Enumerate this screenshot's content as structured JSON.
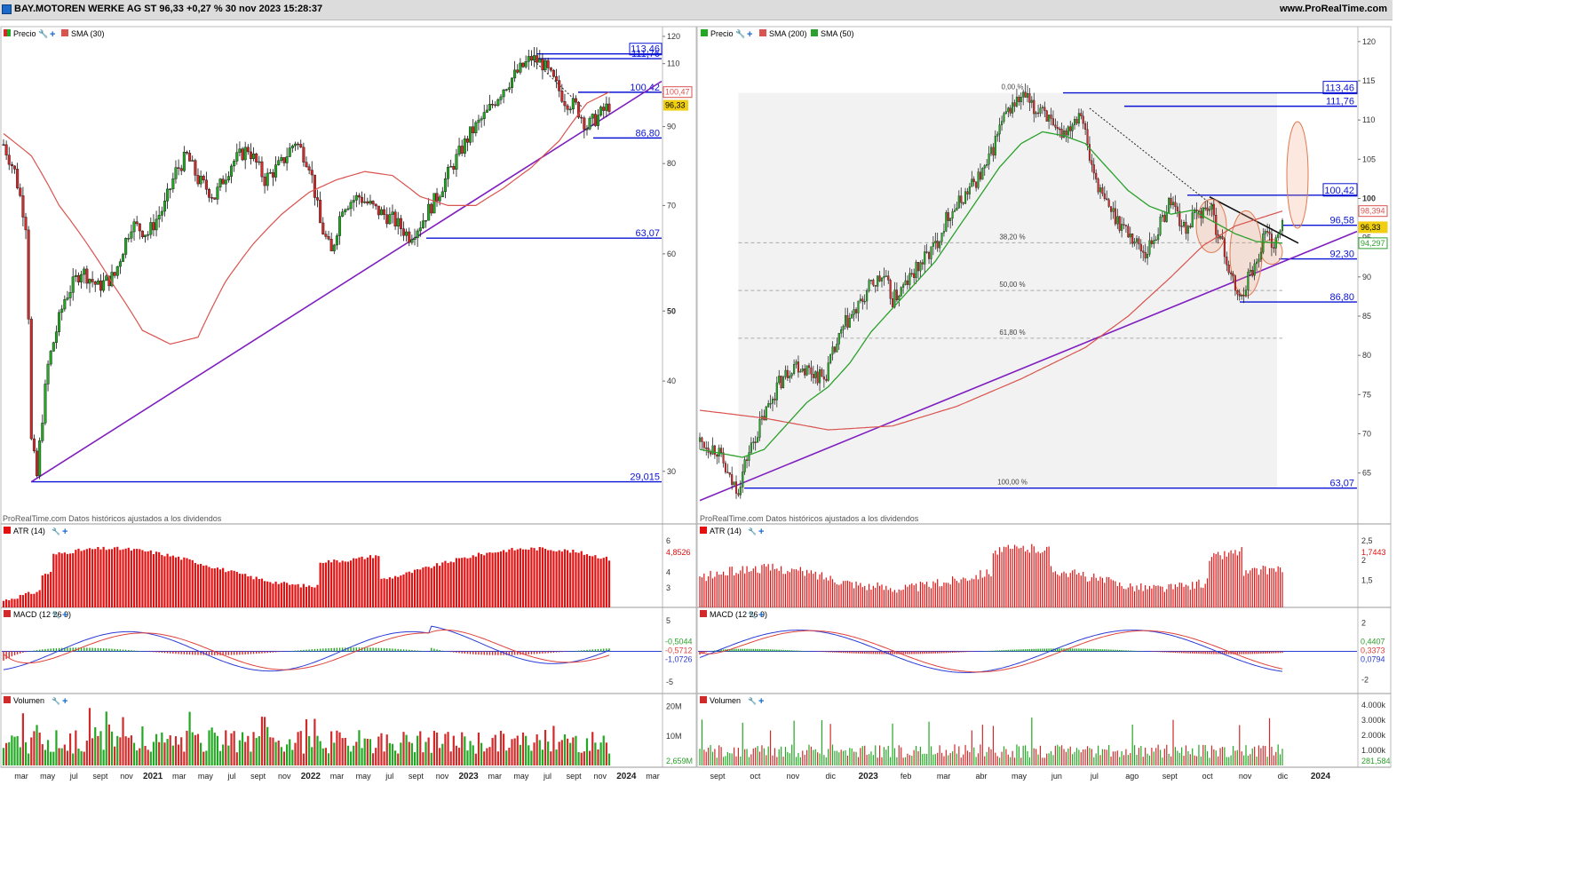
{
  "header": {
    "title": "BAY.MOTOREN WERKE AG ST 96,33 +0,27 % 30 nov 2023 15:28:37",
    "site": "www.ProRealTime.com"
  },
  "colors": {
    "up": "#22a822",
    "down": "#d12a2a",
    "sma_red": "#d9534f",
    "sma_green": "#2ca02c",
    "trend": "#7f1fbf",
    "level": "#0b14d4",
    "macd": "#2a3bd6",
    "signal": "#e0423a",
    "atr": "#e21010",
    "price_tag": "#f0cf12"
  },
  "footer_note": "ProRealTime.com Datos históricos ajustados a los dividendos",
  "left": {
    "legend": {
      "price": "Precio",
      "sma": "SMA (30)"
    },
    "y_ticks": [
      "120",
      "110",
      "100",
      "90",
      "80",
      "70",
      "60",
      "50",
      "40",
      "30"
    ],
    "levels": [
      {
        "label": "113,46",
        "value": 113.46
      },
      {
        "label": "111,76",
        "value": 111.76
      },
      {
        "label": "100,42",
        "value": 100.42
      },
      {
        "label": "86,80",
        "value": 86.8
      },
      {
        "label": "63,07",
        "value": 63.07
      },
      {
        "label": "29,015",
        "value": 29.015
      }
    ],
    "tags": {
      "sma": "100,47",
      "price": "96,33"
    },
    "atr": {
      "legend": "ATR (14)",
      "ticks": [
        "6",
        "4",
        "3"
      ],
      "value": "4,8526"
    },
    "macd": {
      "legend": "MACD (12 26 9)",
      "ticks": [
        "5",
        "-5"
      ],
      "values": [
        "-0,5044",
        "-0,5712",
        "-1,0726"
      ]
    },
    "volume": {
      "legend": "Volumen",
      "ticks": [
        "20M",
        "10M"
      ],
      "value": "2,659M"
    },
    "x_labels": [
      "mar",
      "may",
      "jul",
      "sept",
      "nov",
      "2021",
      "mar",
      "may",
      "jul",
      "sept",
      "nov",
      "2022",
      "mar",
      "may",
      "jul",
      "sept",
      "nov",
      "2023",
      "mar",
      "may",
      "jul",
      "sept",
      "nov",
      "2024",
      "mar"
    ]
  },
  "right": {
    "legend": {
      "price": "Precio",
      "sma200": "SMA (200)",
      "sma50": "SMA (50)"
    },
    "y_ticks": [
      "120",
      "115",
      "110",
      "105",
      "100",
      "95",
      "90",
      "85",
      "80",
      "75",
      "70",
      "65"
    ],
    "levels": [
      {
        "label": "113,46",
        "value": 113.46
      },
      {
        "label": "111,76",
        "value": 111.76
      },
      {
        "label": "100,42",
        "value": 100.42
      },
      {
        "label": "96,58",
        "value": 96.58
      },
      {
        "label": "92,30",
        "value": 92.3
      },
      {
        "label": "86,80",
        "value": 86.8
      },
      {
        "label": "63,07",
        "value": 63.07
      }
    ],
    "fib": [
      "0,00 %",
      "38,20 %",
      "50,00 %",
      "61,80 %",
      "100,00 %"
    ],
    "tags": {
      "sma200": "98,394",
      "price": "96,33",
      "sma50": "94,297"
    },
    "atr": {
      "legend": "ATR (14)",
      "ticks": [
        "2,5",
        "2",
        "1,5"
      ],
      "value": "1,7443"
    },
    "macd": {
      "legend": "MACD (12 26 9)",
      "ticks": [
        "2",
        "-2"
      ],
      "values": [
        "0,4407",
        "0,3373",
        "0,0794"
      ]
    },
    "volume": {
      "legend": "Volumen",
      "ticks": [
        "4.000k",
        "3.000k",
        "2.000k",
        "1.000k"
      ],
      "value": "281,584"
    },
    "x_labels": [
      "sept",
      "oct",
      "nov",
      "dic",
      "2023",
      "feb",
      "mar",
      "abr",
      "may",
      "jun",
      "jul",
      "ago",
      "sept",
      "oct",
      "nov",
      "dic",
      "2024"
    ]
  },
  "chart_data": [
    {
      "type": "candlestick",
      "title": "BAY.MOTOREN WERKE AG ST weekly",
      "scale": "log",
      "ylim": [
        27,
        121
      ],
      "x_start": "2020-02",
      "x_end": "2023-11",
      "close_path": [
        [
          0,
          85
        ],
        [
          4,
          78
        ],
        [
          8,
          66
        ],
        [
          10,
          33
        ],
        [
          12,
          29.5
        ],
        [
          16,
          42
        ],
        [
          22,
          52
        ],
        [
          28,
          57
        ],
        [
          34,
          54
        ],
        [
          40,
          56
        ],
        [
          46,
          66
        ],
        [
          52,
          64
        ],
        [
          58,
          70
        ],
        [
          62,
          78
        ],
        [
          66,
          82
        ],
        [
          70,
          76
        ],
        [
          76,
          72
        ],
        [
          82,
          80
        ],
        [
          88,
          84
        ],
        [
          94,
          76
        ],
        [
          100,
          80
        ],
        [
          105,
          86
        ],
        [
          110,
          80
        ],
        [
          114,
          66
        ],
        [
          118,
          60
        ],
        [
          122,
          70
        ],
        [
          128,
          72
        ],
        [
          134,
          69
        ],
        [
          140,
          67
        ],
        [
          146,
          63.5
        ],
        [
          150,
          66
        ],
        [
          156,
          72
        ],
        [
          162,
          80
        ],
        [
          168,
          88
        ],
        [
          174,
          94
        ],
        [
          180,
          102
        ],
        [
          186,
          108
        ],
        [
          190,
          112
        ],
        [
          194,
          110
        ],
        [
          198,
          104
        ],
        [
          202,
          98
        ],
        [
          206,
          96
        ],
        [
          210,
          90
        ],
        [
          214,
          93
        ],
        [
          218,
          96.33
        ]
      ],
      "sma30_path": [
        [
          0,
          88
        ],
        [
          10,
          82
        ],
        [
          20,
          70
        ],
        [
          30,
          62
        ],
        [
          40,
          54
        ],
        [
          50,
          47
        ],
        [
          60,
          45
        ],
        [
          70,
          46
        ],
        [
          80,
          55
        ],
        [
          90,
          62
        ],
        [
          100,
          68
        ],
        [
          110,
          73
        ],
        [
          120,
          76
        ],
        [
          130,
          78
        ],
        [
          140,
          77
        ],
        [
          150,
          72
        ],
        [
          160,
          70
        ],
        [
          170,
          70
        ],
        [
          180,
          74
        ],
        [
          190,
          79
        ],
        [
          200,
          86
        ],
        [
          210,
          97
        ],
        [
          218,
          100.47
        ]
      ],
      "trendline": [
        [
          10,
          29.015
        ],
        [
          218,
          100
        ]
      ],
      "atr_range": [
        2,
        6.5
      ],
      "macd_range": [
        -6,
        6
      ],
      "volume_max": 22
    },
    {
      "type": "candlestick",
      "title": "BAY.MOTOREN WERKE AG ST daily",
      "scale": "linear",
      "ylim": [
        61,
        121
      ],
      "x_start": "2022-09",
      "x_end": "2023-11",
      "close_path": [
        [
          0,
          69
        ],
        [
          8,
          68
        ],
        [
          14,
          64
        ],
        [
          18,
          63.07
        ],
        [
          22,
          67
        ],
        [
          28,
          71
        ],
        [
          36,
          76
        ],
        [
          44,
          79
        ],
        [
          52,
          78
        ],
        [
          58,
          77
        ],
        [
          62,
          80
        ],
        [
          68,
          84
        ],
        [
          74,
          86
        ],
        [
          80,
          89
        ],
        [
          86,
          90
        ],
        [
          90,
          87
        ],
        [
          96,
          89
        ],
        [
          104,
          92
        ],
        [
          110,
          94
        ],
        [
          116,
          98
        ],
        [
          120,
          99
        ],
        [
          128,
          102
        ],
        [
          134,
          104
        ],
        [
          140,
          109
        ],
        [
          146,
          112
        ],
        [
          152,
          113
        ],
        [
          156,
          111
        ],
        [
          160,
          112
        ],
        [
          166,
          108
        ],
        [
          172,
          109
        ],
        [
          178,
          111.5
        ],
        [
          182,
          105
        ],
        [
          188,
          100
        ],
        [
          196,
          97
        ],
        [
          202,
          95
        ],
        [
          208,
          93
        ],
        [
          214,
          96
        ],
        [
          220,
          100
        ],
        [
          226,
          96
        ],
        [
          232,
          98
        ],
        [
          238,
          99
        ],
        [
          244,
          94
        ],
        [
          248,
          90
        ],
        [
          252,
          87
        ],
        [
          256,
          90
        ],
        [
          260,
          92
        ],
        [
          264,
          96
        ],
        [
          268,
          94
        ],
        [
          272,
          96.33
        ]
      ],
      "sma50_path": [
        [
          0,
          68
        ],
        [
          20,
          67
        ],
        [
          30,
          68
        ],
        [
          40,
          71
        ],
        [
          50,
          74
        ],
        [
          60,
          76
        ],
        [
          70,
          79
        ],
        [
          80,
          83
        ],
        [
          90,
          86
        ],
        [
          100,
          89
        ],
        [
          110,
          92
        ],
        [
          120,
          96
        ],
        [
          130,
          100
        ],
        [
          140,
          104
        ],
        [
          150,
          107
        ],
        [
          160,
          108.5
        ],
        [
          170,
          108
        ],
        [
          180,
          107
        ],
        [
          190,
          104
        ],
        [
          200,
          101
        ],
        [
          210,
          99
        ],
        [
          220,
          98
        ],
        [
          230,
          98.5
        ],
        [
          240,
          97
        ],
        [
          250,
          95.5
        ],
        [
          260,
          94.5
        ],
        [
          272,
          94.3
        ]
      ],
      "sma200_path": [
        [
          0,
          73
        ],
        [
          30,
          72
        ],
        [
          60,
          70.5
        ],
        [
          90,
          71
        ],
        [
          120,
          73.5
        ],
        [
          150,
          77
        ],
        [
          180,
          81
        ],
        [
          200,
          85
        ],
        [
          220,
          90
        ],
        [
          235,
          94
        ],
        [
          250,
          96.5
        ],
        [
          272,
          98.394
        ]
      ],
      "trendline": [
        [
          0,
          61.5
        ],
        [
          272,
          94
        ]
      ],
      "downtrend": [
        [
          235,
          99.5
        ],
        [
          272,
          97
        ]
      ],
      "atr_range": [
        0.9,
        2.7
      ],
      "macd_range": [
        -2.6,
        2.6
      ],
      "volume_max": 4300
    }
  ]
}
